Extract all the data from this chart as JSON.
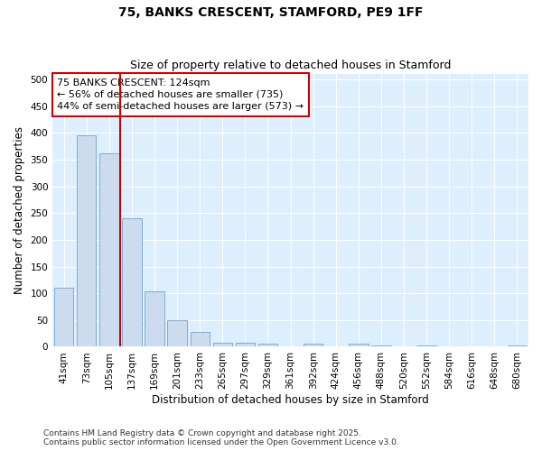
{
  "title1": "75, BANKS CRESCENT, STAMFORD, PE9 1FF",
  "title2": "Size of property relative to detached houses in Stamford",
  "xlabel": "Distribution of detached houses by size in Stamford",
  "ylabel": "Number of detached properties",
  "categories": [
    "41sqm",
    "73sqm",
    "105sqm",
    "137sqm",
    "169sqm",
    "201sqm",
    "233sqm",
    "265sqm",
    "297sqm",
    "329sqm",
    "361sqm",
    "392sqm",
    "424sqm",
    "456sqm",
    "488sqm",
    "520sqm",
    "552sqm",
    "584sqm",
    "616sqm",
    "648sqm",
    "680sqm"
  ],
  "bar_values": [
    110,
    395,
    362,
    240,
    103,
    50,
    28,
    8,
    8,
    5,
    0,
    6,
    0,
    6,
    2,
    0,
    2,
    0,
    0,
    0,
    2
  ],
  "bar_color": "#ccdcee",
  "bar_edge_color": "#7bafd4",
  "vline_x_index": 2.5,
  "vline_color": "#cc0000",
  "annotation_text": "75 BANKS CRESCENT: 124sqm\n← 56% of detached houses are smaller (735)\n44% of semi-detached houses are larger (573) →",
  "annotation_box_edge": "#cc0000",
  "ylim": [
    0,
    510
  ],
  "yticks": [
    0,
    50,
    100,
    150,
    200,
    250,
    300,
    350,
    400,
    450,
    500
  ],
  "fig_bg_color": "#ffffff",
  "plot_bg_color": "#ddeeff",
  "grid_color": "#ffffff",
  "footer": "Contains HM Land Registry data © Crown copyright and database right 2025.\nContains public sector information licensed under the Open Government Licence v3.0.",
  "title_fontsize": 10,
  "subtitle_fontsize": 9,
  "axis_label_fontsize": 8.5,
  "tick_fontsize": 7.5,
  "annotation_fontsize": 8,
  "footer_fontsize": 6.5
}
